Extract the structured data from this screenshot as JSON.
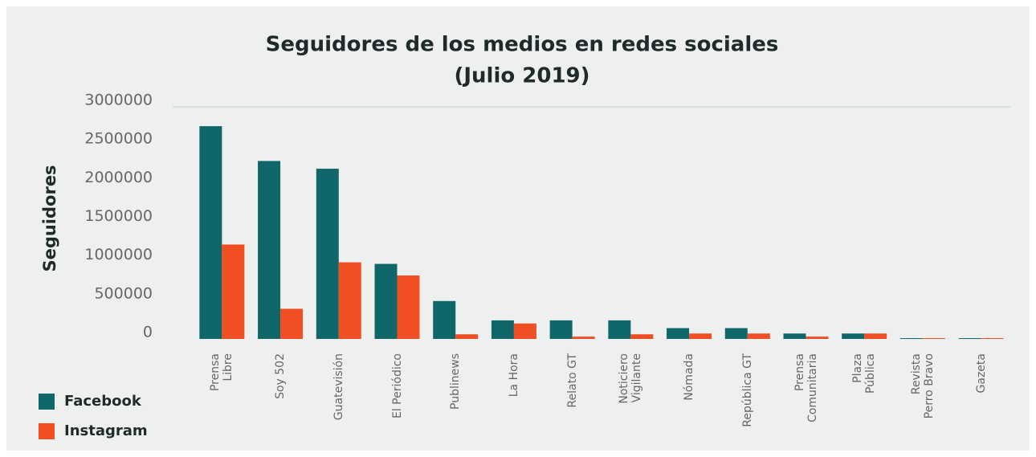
{
  "chart_data": {
    "type": "bar",
    "title": "Seguidores de los medios en redes sociales",
    "subtitle": "(Julio 2019)",
    "y_label": "Seguidores",
    "categories": [
      "Prensa\nLibre",
      "Soy 502",
      "Guatevisión",
      "El Periódico",
      "Publinews",
      "La Hora",
      "Relato GT",
      "Noticiero\nVigilante",
      "Nómada",
      "República GT",
      "Prensa\nComunitaria",
      "Plaza\nPública",
      "Revista\nPerro Bravo",
      "Gazeta"
    ],
    "series": [
      {
        "name": "Facebook",
        "color": "#10676a",
        "values": [
          2750000,
          2300000,
          2200000,
          970000,
          490000,
          240000,
          240000,
          240000,
          140000,
          140000,
          70000,
          70000,
          10000,
          10000
        ]
      },
      {
        "name": "Instagram",
        "color": "#f04f23",
        "values": [
          1220000,
          390000,
          990000,
          820000,
          60000,
          200000,
          30000,
          60000,
          70000,
          70000,
          30000,
          70000,
          10000,
          10000
        ]
      }
    ],
    "ylim": [
      0,
      3000000
    ],
    "yticks": [
      0,
      500000,
      1000000,
      1500000,
      2000000,
      2500000,
      3000000
    ],
    "grid_top": true
  }
}
